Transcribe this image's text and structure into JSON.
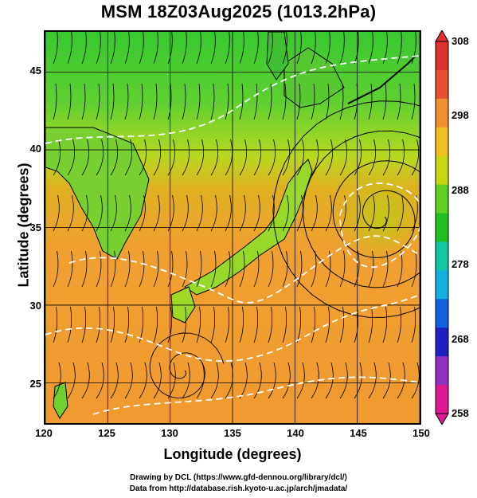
{
  "title": "MSM 18Z03Aug2025 (1013.2hPa)",
  "axes": {
    "xlabel": "Longitude (degrees)",
    "ylabel": "Latitude  (degrees)",
    "xticks": [
      "120",
      "125",
      "130",
      "135",
      "140",
      "145",
      "150"
    ],
    "yticks": [
      "25",
      "30",
      "35",
      "40",
      "45"
    ],
    "xlim": [
      120,
      150
    ],
    "ylim": [
      22.4,
      47.6
    ]
  },
  "colorbar": {
    "ticks": [
      "308",
      "298",
      "288",
      "278",
      "268",
      "258"
    ],
    "range": [
      258,
      308
    ],
    "colors": [
      "#e01890",
      "#9030c0",
      "#2020c0",
      "#1060e0",
      "#10b0e0",
      "#10c8a0",
      "#20c020",
      "#60d020",
      "#c8d810",
      "#f0c020",
      "#f09030",
      "#e85030",
      "#e03030"
    ]
  },
  "footer": {
    "line1": "Drawing by DCL (https://www.gfd-dennou.org/library/dcl/)",
    "line2": "Data from http://database.rish.kyoto-u.ac.jp/arch/jmadata/"
  }
}
